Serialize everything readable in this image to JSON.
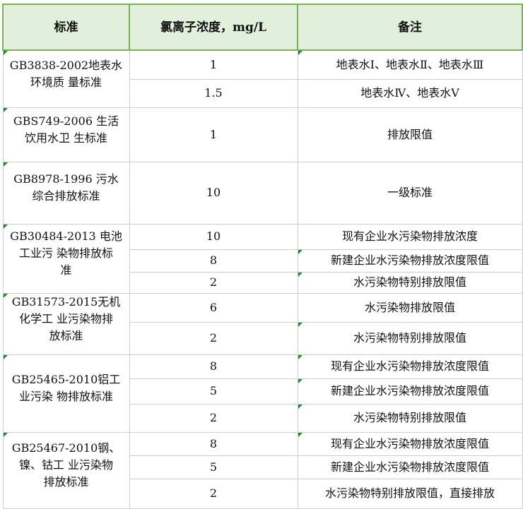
{
  "table": {
    "headers": [
      "标准",
      "氯离子浓度，mg/L",
      "备注"
    ],
    "groups": [
      {
        "standard": "GB3838-2002地表水\n环境质 量标准",
        "rows": [
          {
            "value": "1",
            "note": "地表水Ⅰ、地表水Ⅱ、地表水Ⅲ"
          },
          {
            "value": "1.5",
            "note": "地表水Ⅳ、地表水Ⅴ"
          }
        ]
      },
      {
        "standard": "GBS749-2006 生活\n饮用水卫 生标准",
        "rows": [
          {
            "value": "1",
            "note": "排放限值"
          }
        ]
      },
      {
        "standard": "GB8978-1996 污水\n综合排放标准",
        "rows": [
          {
            "value": "10",
            "note": "一级标准"
          }
        ]
      },
      {
        "standard": "GB30484-2013 电池\n工业污 染物排放标\n准",
        "rows": [
          {
            "value": "10",
            "note": "现有企业水污染物排放浓度"
          },
          {
            "value": "8",
            "note": "新建企业水污染物排放浓度限值"
          },
          {
            "value": "2",
            "note": "水污染物特别排放限值"
          }
        ]
      },
      {
        "standard": "GB31573-2015无机\n化学工 业污染物排\n放标准",
        "rows": [
          {
            "value": "6",
            "note": "水污染物排放限值"
          },
          {
            "value": "2",
            "note": "水污染物特别排放限值"
          }
        ]
      },
      {
        "standard": "GB25465-2010铝工\n业污染 物排放标准",
        "rows": [
          {
            "value": "8",
            "note": "现有企业水污染物排放浓度限值"
          },
          {
            "value": "5",
            "note": "新建企业水污染物排放浓度限值"
          },
          {
            "value": "2",
            "note": "水污染物特别排放限值"
          }
        ]
      },
      {
        "standard": "GB25467-2010钢、\n镍、钴工 业污染物\n排放标准",
        "rows": [
          {
            "value": "8",
            "note": "现有企业水污染物排放浓度限值"
          },
          {
            "value": "5",
            "note": "新建企业水污染物排放浓度限值"
          },
          {
            "value": "2",
            "note": "水污染物特别排放限值，直接排放"
          }
        ]
      }
    ]
  },
  "colors": {
    "header_bg": "#e2efda",
    "header_border": "#77b257",
    "grid": "#c9cedf",
    "comment_marker": "#1f8a1f"
  }
}
